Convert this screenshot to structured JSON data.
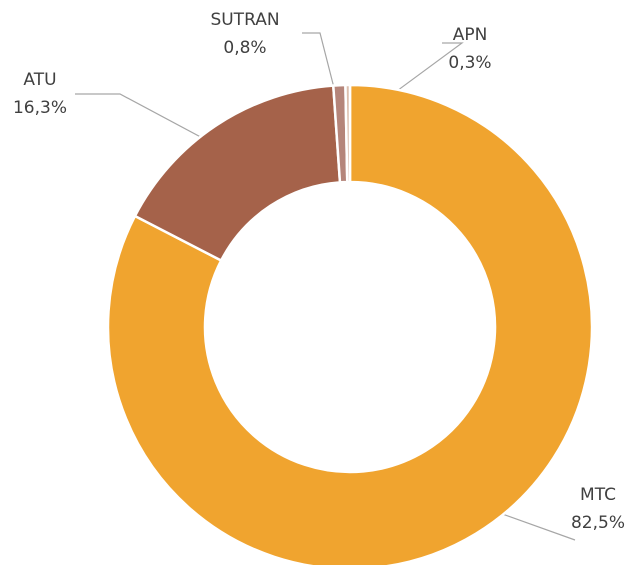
{
  "chart_data": {
    "type": "donut",
    "categories": [
      "MTC",
      "ATU",
      "SUTRAN",
      "APN"
    ],
    "values": [
      82.5,
      16.3,
      0.8,
      0.3
    ],
    "value_labels": [
      "82,5%",
      "16,3%",
      "0,8%",
      "0,3%"
    ],
    "colors": [
      "#f0a42f",
      "#a5624a",
      "#b5857a",
      "#dcbfae"
    ]
  }
}
